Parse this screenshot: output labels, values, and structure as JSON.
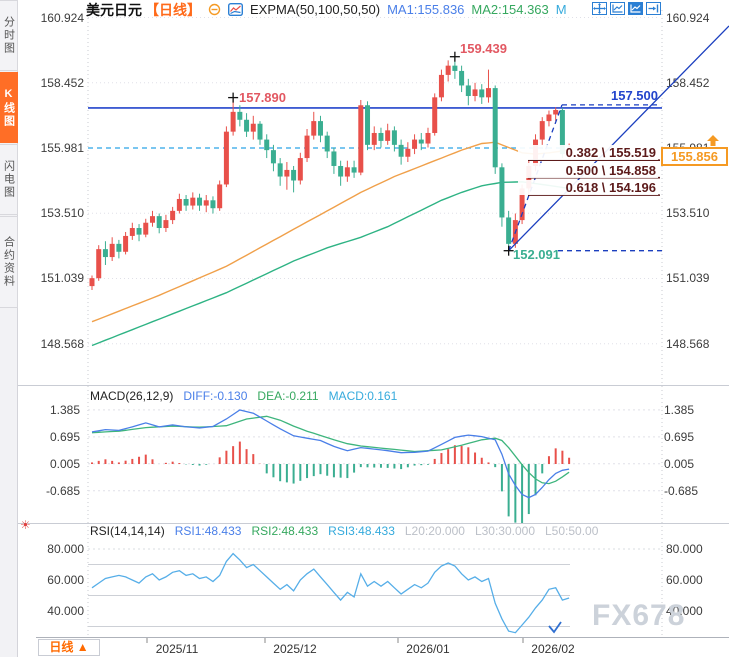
{
  "sidebar": {
    "tabs": [
      {
        "label": "分时图",
        "active": false
      },
      {
        "label": "K线图",
        "active": true
      },
      {
        "label": "闪电图",
        "active": false
      },
      {
        "label": "合约资料",
        "active": false
      }
    ]
  },
  "header": {
    "symbol": "美元日元",
    "period": "【日线】",
    "indicator_label": "EXPMA(50,100,50,50)",
    "ma1_label": "MA1:155.836",
    "ma2_label": "MA2:154.363",
    "ma3_label": "M",
    "toolbar_icons": [
      "move-crosshair",
      "chart-frame",
      "chart-filled",
      "exit-arrow"
    ]
  },
  "macd_panel": {
    "title": "MACD(26,12,9)",
    "diff_label": "DIFF:-0.130",
    "dea_label": "DEA:-0.211",
    "macd_label": "MACD:0.161"
  },
  "rsi_panel": {
    "title": "RSI(14,14,14)",
    "rsi1_label": "RSI1:48.433",
    "rsi2_label": "RSI2:48.433",
    "rsi3_label": "RSI3:48.433",
    "l20_label": "L20:20.000",
    "l30_label": "L30:30.000",
    "l50_label": "L50:50.00"
  },
  "annotations": {
    "swing_high1": "157.890",
    "swing_high2": "159.439",
    "swing_low": "152.091",
    "resistance_label": "157.500",
    "price_box": "155.856",
    "fib": [
      {
        "text": "0.382 \\ 155.519",
        "price": 155.519
      },
      {
        "text": "0.500 \\ 154.858",
        "price": 154.858
      },
      {
        "text": "0.618 \\ 154.196",
        "price": 154.196
      }
    ]
  },
  "bottom": {
    "period_label": "日线 ▲"
  },
  "watermark": "FX678",
  "colors": {
    "up": "#e8504a",
    "down": "#3aae91",
    "ma_fast": "#f0a04a",
    "ma_slow": "#2eb384",
    "diff_line": "#4a7fe8",
    "dea_line": "#3eb57d",
    "rsi_line": "#56aee8",
    "level_blue": "#2244cc",
    "dashed_cyan": "#2ba3e8",
    "fib_line": "#5c1a1a",
    "anno_high": "#e25862",
    "anno_low": "#3aae91",
    "accent_orange": "#f59a23",
    "grid": "#e4e4ea",
    "panel_border": "#c9ccd4"
  },
  "chart_data": {
    "type": "candlestick+macd+rsi",
    "title": "美元日元 日线",
    "price_axis_values": [
      160.924,
      158.452,
      155.981,
      153.51,
      151.039,
      148.568
    ],
    "macd_axis_values": [
      1.385,
      0.695,
      0.005,
      -0.685
    ],
    "rsi_axis_values": [
      80.0,
      60.0,
      40.0
    ],
    "rsi_level_lines": [
      70,
      50,
      30
    ],
    "x_dates": [
      "2025/11",
      "2025/12",
      "2026/01",
      "2026/02"
    ],
    "ylim_price": [
      148.568,
      160.924
    ],
    "candles_ohlc": [
      [
        150.75,
        151.15,
        150.6,
        151.05
      ],
      [
        151.05,
        152.3,
        150.95,
        152.15
      ],
      [
        152.15,
        152.45,
        151.55,
        151.85
      ],
      [
        151.85,
        152.6,
        151.7,
        152.35
      ],
      [
        152.35,
        152.5,
        151.8,
        152.05
      ],
      [
        152.05,
        152.8,
        151.95,
        152.65
      ],
      [
        152.65,
        153.15,
        152.5,
        152.95
      ],
      [
        152.95,
        153.1,
        152.45,
        152.7
      ],
      [
        152.7,
        153.3,
        152.6,
        153.15
      ],
      [
        153.15,
        153.6,
        153.0,
        153.4
      ],
      [
        153.4,
        153.5,
        152.75,
        152.95
      ],
      [
        152.95,
        153.45,
        152.8,
        153.25
      ],
      [
        153.25,
        153.75,
        153.1,
        153.6
      ],
      [
        153.6,
        154.25,
        153.5,
        154.05
      ],
      [
        154.05,
        154.2,
        153.6,
        153.8
      ],
      [
        153.8,
        154.3,
        153.65,
        154.1
      ],
      [
        154.1,
        154.25,
        153.6,
        153.8
      ],
      [
        153.8,
        154.2,
        153.55,
        154.0
      ],
      [
        154.0,
        154.15,
        153.5,
        153.7
      ],
      [
        153.7,
        154.75,
        153.6,
        154.6
      ],
      [
        154.6,
        156.8,
        154.5,
        156.6
      ],
      [
        156.6,
        157.89,
        156.45,
        157.35
      ],
      [
        157.35,
        157.6,
        156.8,
        157.05
      ],
      [
        157.05,
        157.3,
        156.4,
        156.6
      ],
      [
        156.6,
        157.2,
        156.3,
        156.9
      ],
      [
        156.9,
        157.0,
        156.1,
        156.3
      ],
      [
        156.3,
        156.5,
        155.6,
        155.9
      ],
      [
        155.9,
        156.1,
        155.1,
        155.4
      ],
      [
        155.4,
        155.6,
        154.55,
        154.9
      ],
      [
        154.9,
        155.45,
        154.4,
        155.15
      ],
      [
        155.15,
        155.3,
        154.3,
        154.75
      ],
      [
        154.75,
        155.8,
        154.6,
        155.6
      ],
      [
        155.6,
        156.7,
        155.45,
        156.45
      ],
      [
        156.45,
        157.35,
        156.3,
        157.0
      ],
      [
        157.0,
        157.2,
        156.2,
        156.45
      ],
      [
        156.45,
        156.6,
        155.6,
        155.85
      ],
      [
        155.85,
        156.0,
        155.0,
        155.3
      ],
      [
        155.3,
        155.5,
        154.55,
        154.9
      ],
      [
        154.9,
        155.5,
        154.7,
        155.25
      ],
      [
        155.25,
        155.5,
        154.85,
        155.05
      ],
      [
        155.05,
        157.8,
        154.95,
        157.6
      ],
      [
        157.6,
        157.75,
        155.9,
        156.1
      ],
      [
        156.1,
        156.8,
        155.9,
        156.55
      ],
      [
        156.55,
        156.75,
        156.0,
        156.25
      ],
      [
        156.25,
        156.9,
        156.1,
        156.65
      ],
      [
        156.65,
        156.8,
        155.85,
        156.1
      ],
      [
        156.1,
        156.3,
        155.35,
        155.65
      ],
      [
        155.65,
        156.2,
        155.45,
        155.95
      ],
      [
        155.95,
        156.5,
        155.75,
        156.3
      ],
      [
        156.3,
        156.55,
        155.9,
        156.15
      ],
      [
        156.15,
        156.75,
        156.0,
        156.55
      ],
      [
        156.55,
        158.05,
        156.45,
        157.9
      ],
      [
        157.9,
        158.95,
        157.75,
        158.75
      ],
      [
        158.75,
        159.3,
        158.5,
        159.1
      ],
      [
        159.1,
        159.44,
        158.6,
        158.9
      ],
      [
        158.9,
        159.1,
        158.1,
        158.35
      ],
      [
        158.35,
        158.6,
        157.6,
        157.95
      ],
      [
        157.95,
        158.45,
        157.75,
        158.2
      ],
      [
        158.2,
        158.4,
        157.65,
        157.9
      ],
      [
        157.9,
        158.95,
        157.7,
        158.25
      ],
      [
        158.25,
        158.35,
        155.0,
        155.25
      ],
      [
        155.25,
        155.4,
        153.0,
        153.35
      ],
      [
        153.35,
        153.6,
        152.09,
        152.35
      ],
      [
        152.35,
        153.5,
        152.2,
        153.25
      ],
      [
        153.25,
        154.6,
        153.1,
        154.45
      ],
      [
        154.45,
        155.5,
        154.2,
        155.3
      ],
      [
        155.3,
        156.5,
        155.1,
        156.3
      ],
      [
        156.3,
        157.15,
        156.1,
        157.0
      ],
      [
        157.0,
        157.4,
        156.8,
        157.25
      ],
      [
        157.25,
        157.52,
        157.0,
        157.42
      ],
      [
        157.42,
        157.5,
        155.6,
        155.75
      ],
      [
        155.7,
        156.15,
        155.55,
        155.86
      ]
    ],
    "ma_fast_samples": [
      [
        0,
        149.4
      ],
      [
        10,
        150.4
      ],
      [
        20,
        151.5
      ],
      [
        25,
        152.2
      ],
      [
        30,
        152.9
      ],
      [
        35,
        153.6
      ],
      [
        40,
        154.3
      ],
      [
        45,
        154.9
      ],
      [
        50,
        155.4
      ],
      [
        55,
        155.9
      ],
      [
        58,
        156.15
      ],
      [
        60,
        156.2
      ],
      [
        62,
        156.0
      ],
      [
        64,
        155.8
      ],
      [
        66,
        155.75
      ],
      [
        68,
        155.8
      ],
      [
        71,
        155.9
      ]
    ],
    "ma_slow_samples": [
      [
        0,
        148.5
      ],
      [
        10,
        149.5
      ],
      [
        20,
        150.5
      ],
      [
        25,
        151.1
      ],
      [
        30,
        151.7
      ],
      [
        35,
        152.2
      ],
      [
        40,
        152.6
      ],
      [
        44,
        153.0
      ],
      [
        48,
        153.5
      ],
      [
        52,
        154.0
      ],
      [
        55,
        154.3
      ],
      [
        58,
        154.55
      ],
      [
        61,
        154.68
      ],
      [
        64,
        154.7
      ],
      [
        67,
        154.6
      ],
      [
        71,
        154.45
      ]
    ],
    "macd_diff_samples": [
      [
        0,
        0.82
      ],
      [
        2,
        0.88
      ],
      [
        4,
        0.86
      ],
      [
        6,
        0.95
      ],
      [
        8,
        1.05
      ],
      [
        10,
        0.95
      ],
      [
        12,
        1.0
      ],
      [
        14,
        0.95
      ],
      [
        16,
        0.92
      ],
      [
        18,
        0.96
      ],
      [
        20,
        1.15
      ],
      [
        22,
        1.38
      ],
      [
        24,
        1.3
      ],
      [
        26,
        1.1
      ],
      [
        28,
        0.9
      ],
      [
        30,
        0.72
      ],
      [
        32,
        0.66
      ],
      [
        34,
        0.6
      ],
      [
        36,
        0.45
      ],
      [
        38,
        0.34
      ],
      [
        40,
        0.42
      ],
      [
        42,
        0.38
      ],
      [
        44,
        0.34
      ],
      [
        46,
        0.29
      ],
      [
        48,
        0.3
      ],
      [
        50,
        0.33
      ],
      [
        52,
        0.5
      ],
      [
        54,
        0.68
      ],
      [
        56,
        0.74
      ],
      [
        58,
        0.7
      ],
      [
        60,
        0.62
      ],
      [
        61,
        0.25
      ],
      [
        62,
        -0.25
      ],
      [
        63,
        -0.55
      ],
      [
        64,
        -0.78
      ],
      [
        65,
        -0.86
      ],
      [
        66,
        -0.78
      ],
      [
        67,
        -0.6
      ],
      [
        68,
        -0.4
      ],
      [
        69,
        -0.24
      ],
      [
        70,
        -0.16
      ],
      [
        71,
        -0.13
      ]
    ],
    "macd_dea_samples": [
      [
        0,
        0.8
      ],
      [
        4,
        0.84
      ],
      [
        8,
        0.93
      ],
      [
        12,
        0.97
      ],
      [
        16,
        0.94
      ],
      [
        20,
        0.98
      ],
      [
        23,
        1.15
      ],
      [
        26,
        1.22
      ],
      [
        28,
        1.12
      ],
      [
        30,
        0.97
      ],
      [
        32,
        0.84
      ],
      [
        34,
        0.73
      ],
      [
        36,
        0.62
      ],
      [
        38,
        0.52
      ],
      [
        40,
        0.46
      ],
      [
        44,
        0.39
      ],
      [
        48,
        0.32
      ],
      [
        52,
        0.36
      ],
      [
        55,
        0.48
      ],
      [
        58,
        0.62
      ],
      [
        60,
        0.66
      ],
      [
        61,
        0.6
      ],
      [
        62,
        0.42
      ],
      [
        63,
        0.2
      ],
      [
        64,
        -0.02
      ],
      [
        65,
        -0.22
      ],
      [
        66,
        -0.38
      ],
      [
        67,
        -0.48
      ],
      [
        68,
        -0.5
      ],
      [
        69,
        -0.44
      ],
      [
        70,
        -0.33
      ],
      [
        71,
        -0.21
      ]
    ],
    "macd_values": {
      "diff": -0.13,
      "dea": -0.211,
      "macd": 0.161
    },
    "rsi_series": [
      55,
      58,
      61,
      62,
      63,
      62,
      60,
      58,
      62,
      64,
      60,
      62,
      65,
      66,
      63,
      64,
      61,
      62,
      59,
      63,
      72,
      77,
      73,
      68,
      70,
      66,
      62,
      58,
      54,
      57,
      53,
      60,
      64,
      67,
      62,
      57,
      52,
      47,
      52,
      49,
      64,
      56,
      59,
      56,
      59,
      55,
      51,
      54,
      57,
      55,
      58,
      65,
      69,
      71,
      69,
      64,
      60,
      62,
      59,
      61,
      45,
      35,
      27,
      26,
      31,
      36,
      42,
      47,
      54,
      55,
      47,
      48.4
    ],
    "levels": {
      "resistance": 157.5,
      "dashed_price_line": 155.981,
      "swing_high1": {
        "index": 21,
        "price": 157.89
      },
      "swing_high2": {
        "index": 54,
        "price": 159.439
      },
      "swing_low": {
        "index": 62,
        "price": 152.091
      },
      "current_price": 155.856,
      "fib_prices": [
        155.519,
        154.858,
        154.196
      ]
    }
  }
}
